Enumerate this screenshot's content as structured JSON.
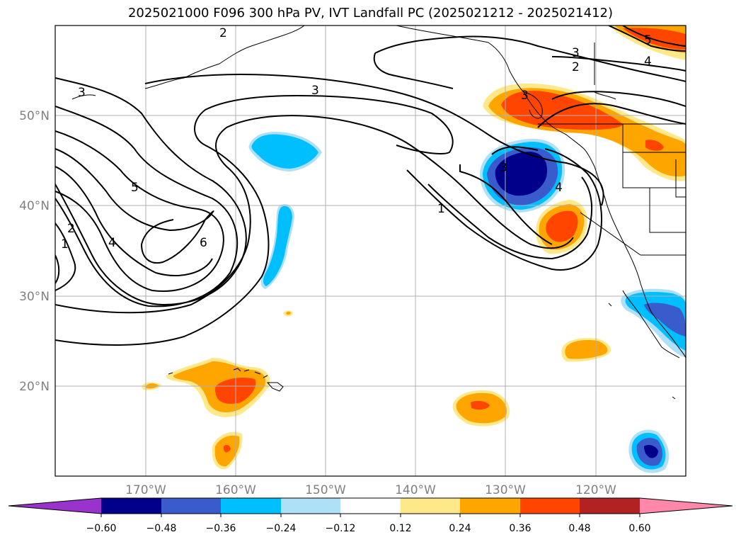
{
  "title": "2025021000 F096 300 hPa PV, IVT Landfall PC (2025021212 - 2025021412)",
  "colors": {
    "neg_060_plus": "#9933cc",
    "neg_048": "#00008b",
    "neg_036": "#3a5bcc",
    "neg_024": "#00bfff",
    "neg_012": "#aee0f7",
    "neutral": "#ffffff",
    "pos_012": "#ffe88a",
    "pos_024": "#ffa500",
    "pos_036": "#ff4500",
    "pos_048": "#b22222",
    "pos_060_plus": "#ff88aa"
  },
  "axes": {
    "lon_ticks": [
      "170°W",
      "160°W",
      "150°W",
      "140°W",
      "130°W",
      "120°W"
    ],
    "lat_ticks": [
      "50°N",
      "40°N",
      "30°N",
      "20°N"
    ]
  },
  "colorbar": {
    "ticks": [
      "−0.60",
      "−0.48",
      "−0.36",
      "−0.24",
      "−0.12",
      "0.12",
      "0.24",
      "0.36",
      "0.48",
      "0.60"
    ]
  },
  "contour_labels": [
    "3",
    "2",
    "3",
    "5",
    "2",
    "1",
    "4",
    "6",
    "3",
    "1",
    "3",
    "4",
    "3",
    "2",
    "5",
    "4"
  ]
}
